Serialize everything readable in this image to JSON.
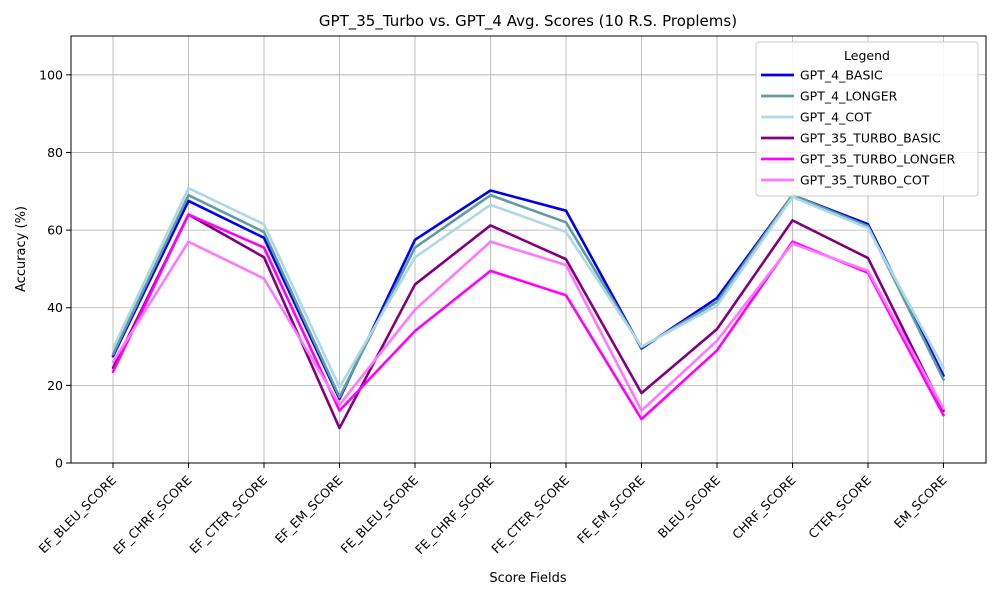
{
  "chart_data": {
    "type": "line",
    "title": "GPT_35_Turbo vs. GPT_4 Avg. Scores (10 R.S. Proplems)",
    "xlabel": "Score Fields",
    "ylabel": "Accuracy (%)",
    "ylim": [
      0,
      110
    ],
    "yticks": [
      0,
      20,
      40,
      60,
      80,
      100
    ],
    "grid": true,
    "legend_title": "Legend",
    "legend_position": "top-right",
    "categories": [
      "EF_BLEU_SCORE",
      "EF_CHRF_SCORE",
      "EF_CTER_SCORE",
      "EF_EM_SCORE",
      "FE_BLEU_SCORE",
      "FE_CHRF_SCORE",
      "FE_CTER_SCORE",
      "FE_EM_SCORE",
      "BLEU_SCORE",
      "CHRF_SCORE",
      "CTER_SCORE",
      "EM_SCORE"
    ],
    "series": [
      {
        "name": "GPT_4_BASIC",
        "color": "#0000ee",
        "values": [
          27.5,
          67.5,
          58.0,
          16.5,
          57.5,
          70.2,
          65.0,
          29.5,
          42.5,
          69.0,
          61.5,
          22.5
        ]
      },
      {
        "name": "GPT_4_LONGER",
        "color": "#5f9ea0",
        "values": [
          28.0,
          69.0,
          59.5,
          17.0,
          55.5,
          69.0,
          62.0,
          29.8,
          41.5,
          69.0,
          61.0,
          21.5
        ]
      },
      {
        "name": "GPT_4_COT",
        "color": "#add8e6",
        "values": [
          29.5,
          70.8,
          61.5,
          19.5,
          53.0,
          66.5,
          59.5,
          30.0,
          40.5,
          68.5,
          60.5,
          24.5
        ]
      },
      {
        "name": "GPT_35_TURBO_BASIC",
        "color": "#800080",
        "values": [
          24.5,
          64.0,
          53.0,
          9.0,
          46.0,
          61.2,
          52.5,
          18.0,
          34.5,
          62.5,
          52.8,
          13.5
        ]
      },
      {
        "name": "GPT_35_TURBO_LONGER",
        "color": "#ff00ff",
        "values": [
          23.5,
          64.0,
          55.5,
          13.5,
          34.0,
          49.5,
          43.2,
          11.3,
          29.0,
          57.0,
          49.0,
          12.3
        ]
      },
      {
        "name": "GPT_35_TURBO_COT",
        "color": "#ff77ff",
        "values": [
          26.0,
          57.0,
          47.5,
          15.0,
          39.5,
          57.0,
          51.0,
          13.5,
          31.5,
          56.5,
          49.5,
          14.0
        ]
      }
    ]
  }
}
